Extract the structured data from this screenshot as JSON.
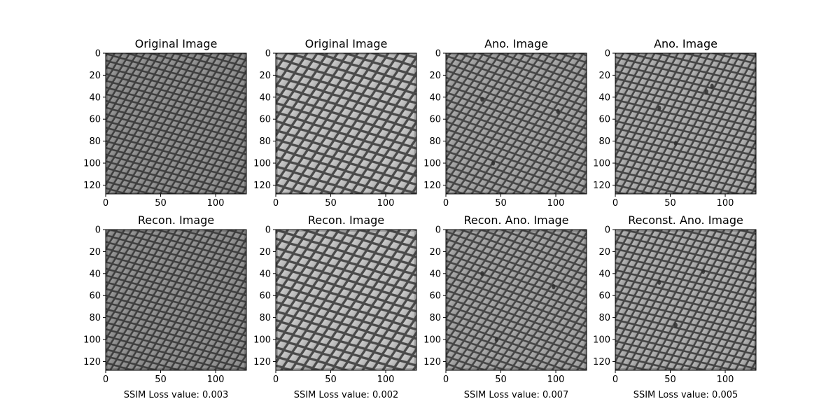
{
  "chart_data": {
    "type": "image-grid",
    "rows": 2,
    "cols": 4,
    "image_size": [
      128,
      128
    ],
    "x_ticks": [
      0,
      50,
      100
    ],
    "y_ticks": [
      0,
      20,
      40,
      60,
      80,
      100,
      120
    ],
    "colormap": "gray",
    "texture": "diamond mesh grid",
    "panels": [
      {
        "title": "Original Image",
        "row": 0,
        "col": 0,
        "variant": "dark"
      },
      {
        "title": "Original Image",
        "row": 0,
        "col": 1,
        "variant": "light"
      },
      {
        "title": "Ano. Image",
        "row": 0,
        "col": 2,
        "variant": "mid",
        "defects": [
          [
            33,
            42
          ],
          [
            43,
            100
          ],
          [
            102,
            53
          ]
        ]
      },
      {
        "title": "Ano. Image",
        "row": 0,
        "col": 3,
        "variant": "mid2",
        "defects": [
          [
            40,
            50
          ],
          [
            55,
            82
          ],
          [
            83,
            35
          ],
          [
            88,
            30
          ]
        ]
      },
      {
        "title": "Recon. Image",
        "row": 1,
        "col": 0,
        "variant": "dark",
        "xlabel": "SSIM Loss value: 0.003"
      },
      {
        "title": "Recon. Image",
        "row": 1,
        "col": 1,
        "variant": "light",
        "xlabel": "SSIM Loss value: 0.002"
      },
      {
        "title": "Recon. Ano. Image",
        "row": 1,
        "col": 2,
        "variant": "mid",
        "defects": [
          [
            33,
            40
          ],
          [
            98,
            52
          ],
          [
            46,
            100
          ]
        ],
        "xlabel": "SSIM Loss value: 0.007"
      },
      {
        "title": "Reconst. Ano. Image",
        "row": 1,
        "col": 3,
        "variant": "mid2",
        "defects": [
          [
            40,
            48
          ],
          [
            80,
            38
          ],
          [
            55,
            87
          ]
        ],
        "xlabel": "SSIM Loss value: 0.005"
      }
    ]
  }
}
